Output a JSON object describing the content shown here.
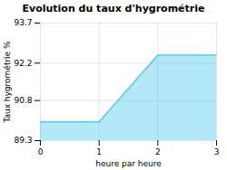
{
  "chart_data": {
    "type": "area",
    "title": "Evolution du taux d'hygrométrie",
    "xlabel": "heure par heure",
    "ylabel": "Taux hygrométrie %",
    "x": [
      0,
      1,
      2,
      3
    ],
    "values": [
      90.0,
      90.0,
      92.5,
      92.5
    ],
    "color": "#55ccee",
    "xlim": [
      0,
      3
    ],
    "xticks": [
      0,
      1,
      2,
      3
    ],
    "ylim": [
      89.3,
      93.7
    ],
    "yticks": [
      89.3,
      90.8,
      92.2,
      93.7
    ],
    "grid": true
  }
}
